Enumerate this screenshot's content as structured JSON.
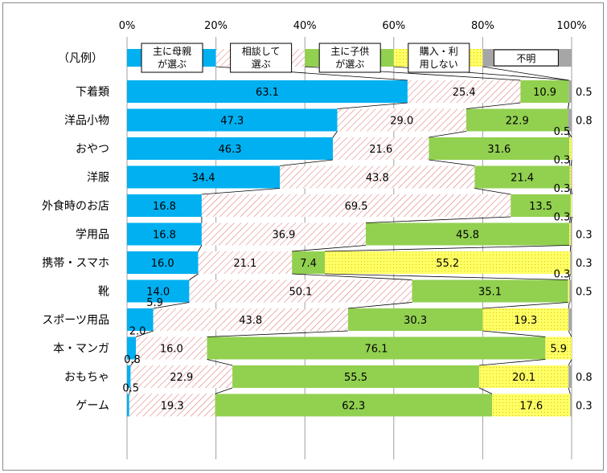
{
  "chart_data": {
    "type": "bar",
    "orientation": "horizontal",
    "stacked": true,
    "percent": true,
    "x_ticks": [
      "0%",
      "20%",
      "40%",
      "60%",
      "80%",
      "100%"
    ],
    "xlim": [
      0,
      100
    ],
    "legend_row_label": "（凡例）",
    "categories": [
      "下着類",
      "洋品小物",
      "おやつ",
      "洋服",
      "外食時のお店",
      "学用品",
      "携帯・スマホ",
      "靴",
      "スポーツ用品",
      "本・マンガ",
      "おもちゃ",
      "ゲーム"
    ],
    "series": [
      {
        "name": "主に母親が選ぶ",
        "legend_lines": [
          "主に母親",
          "が選ぶ"
        ],
        "color": "#00B0F0",
        "pattern": "solid",
        "values": [
          63.1,
          47.3,
          46.3,
          34.4,
          16.8,
          16.8,
          16.0,
          14.0,
          5.9,
          2.0,
          0.8,
          0.5
        ],
        "labels": [
          "63.1",
          "47.3",
          "46.3",
          "34.4",
          "16.8",
          "16.8",
          "16.0",
          "14.0",
          "5.9",
          "2.0",
          "0.8",
          "0.5"
        ]
      },
      {
        "name": "相談して選ぶ",
        "legend_lines": [
          "相談して",
          "選ぶ"
        ],
        "color": "#E8A0A0",
        "pattern": "hatch",
        "values": [
          25.4,
          29.0,
          21.6,
          43.8,
          69.5,
          36.9,
          21.1,
          50.1,
          43.8,
          16.0,
          22.9,
          19.3
        ],
        "labels": [
          "25.4",
          "29.0",
          "21.6",
          "43.8",
          "69.5",
          "36.9",
          "21.1",
          "50.1",
          "43.8",
          "16.0",
          "22.9",
          "19.3"
        ]
      },
      {
        "name": "主に子供が選ぶ",
        "legend_lines": [
          "主に子供",
          "が選ぶ"
        ],
        "color": "#92D050",
        "pattern": "solid",
        "values": [
          10.9,
          22.9,
          31.6,
          21.4,
          13.5,
          45.8,
          7.4,
          35.1,
          30.3,
          76.1,
          55.5,
          62.3
        ],
        "labels": [
          "10.9",
          "22.9",
          "31.6",
          "21.4",
          "13.5",
          "45.8",
          "7.4",
          "35.1",
          "30.3",
          "76.1",
          "55.5",
          "62.3"
        ]
      },
      {
        "name": "購入・利用しない",
        "legend_lines": [
          "購入・利",
          "用しない"
        ],
        "color": "#FFFF66",
        "pattern": "dots",
        "values": [
          0.0,
          0.0,
          0.5,
          0.3,
          0.3,
          0.3,
          55.2,
          0.3,
          19.3,
          5.9,
          20.1,
          17.6
        ],
        "labels": [
          "",
          "",
          "0.5",
          "0.3",
          "0.3",
          "0.3",
          "55.2",
          "0.3",
          "19.3",
          "5.9",
          "20.1",
          "17.6"
        ]
      },
      {
        "name": "不明",
        "legend_lines": [
          "不明"
        ],
        "color": "#A6A6A6",
        "pattern": "solid",
        "values": [
          0.5,
          0.8,
          0.0,
          0.0,
          0.0,
          0.3,
          0.3,
          0.5,
          0.7,
          0.0,
          0.8,
          0.3
        ],
        "labels": [
          "0.5",
          "0.8",
          "",
          "",
          "",
          "0.3",
          "0.3",
          "0.5",
          "",
          "",
          "0.8",
          "0.3"
        ]
      }
    ]
  }
}
